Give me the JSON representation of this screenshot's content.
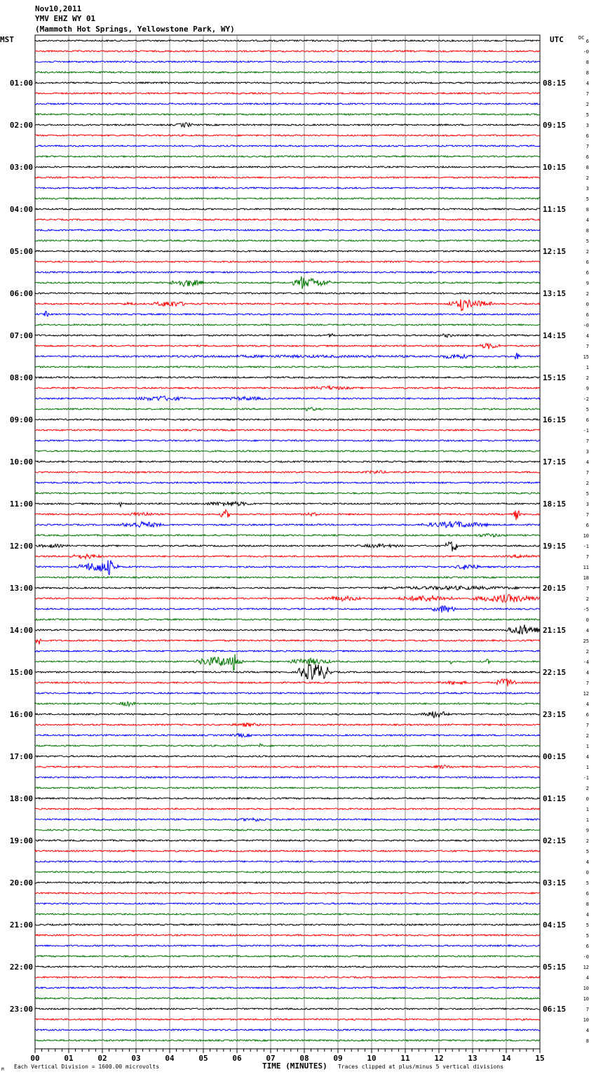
{
  "header": {
    "date": "Nov10,2011",
    "station": "YMV EHZ WY 01",
    "location": "(Mammoth Hot Springs, Yellowstone Park, WY)"
  },
  "chart_data": {
    "type": "line",
    "title": "YMV EHZ WY 01 helicorder",
    "left_axis_label": "MST",
    "right_axis_label": "UTC",
    "dc_label": "DC",
    "xlabel": "TIME (MINUTES)",
    "xlim": [
      0,
      15
    ],
    "x_ticks": [
      "00",
      "01",
      "02",
      "03",
      "04",
      "05",
      "06",
      "07",
      "08",
      "09",
      "10",
      "11",
      "12",
      "13",
      "14",
      "15"
    ],
    "mst_labels": [
      "01:00",
      "02:00",
      "03:00",
      "04:00",
      "05:00",
      "06:00",
      "07:00",
      "08:00",
      "09:00",
      "10:00",
      "11:00",
      "12:00",
      "13:00",
      "14:00",
      "15:00",
      "16:00",
      "17:00",
      "18:00",
      "19:00",
      "20:00",
      "21:00",
      "22:00",
      "23:00"
    ],
    "utc_labels": [
      "08:15",
      "09:15",
      "10:15",
      "11:15",
      "12:15",
      "13:15",
      "14:15",
      "15:15",
      "16:15",
      "17:15",
      "18:15",
      "19:15",
      "20:15",
      "21:15",
      "22:15",
      "23:15",
      "00:15",
      "01:15",
      "02:15",
      "03:15",
      "04:15",
      "05:15",
      "06:15"
    ],
    "trace_colors": [
      "#000000",
      "#ff0000",
      "#0000ff",
      "#007700"
    ],
    "dc_offsets": [
      "6",
      "-0",
      "8",
      "8",
      "4",
      "7",
      "2",
      "5",
      "3",
      "6",
      "7",
      "6",
      "8",
      "2",
      "3",
      "5",
      "8",
      "4",
      "8",
      "5",
      "2",
      "6",
      "6",
      "9",
      "2",
      "0",
      "6",
      "-0",
      "4",
      "7",
      "15",
      "1",
      "2",
      "9",
      "-2",
      "5",
      "6",
      "-1",
      "7",
      "3",
      "4",
      "7",
      "2",
      "5",
      "3",
      "7",
      "6",
      "10",
      "-1",
      "7",
      "11",
      "18",
      "7",
      "2",
      "-5",
      "0",
      "4",
      "25",
      "2",
      "-4",
      "4",
      "7",
      "12",
      "4",
      "6",
      "7",
      "2",
      "1",
      "4",
      "1",
      "-1",
      "2",
      "0",
      "1",
      "1",
      "9",
      "2",
      "5",
      "4",
      "0",
      "5",
      "6",
      "8",
      "4",
      "5",
      "5",
      "6",
      "-0",
      "12",
      "4",
      "10",
      "10",
      "7",
      "10",
      "4",
      "8"
    ],
    "events": [
      {
        "trace": 8,
        "start": 4.2,
        "end": 4.7,
        "amp": 4
      },
      {
        "trace": 23,
        "start": 4.0,
        "end": 5.0,
        "amp": 6
      },
      {
        "trace": 23,
        "start": 7.6,
        "end": 8.8,
        "amp": 7
      },
      {
        "trace": 23,
        "start": 7.85,
        "end": 8.0,
        "amp": 14
      },
      {
        "trace": 25,
        "start": 2.6,
        "end": 3.0,
        "amp": 3
      },
      {
        "trace": 25,
        "start": 3.5,
        "end": 4.5,
        "amp": 5
      },
      {
        "trace": 25,
        "start": 12.2,
        "end": 13.6,
        "amp": 6
      },
      {
        "trace": 25,
        "start": 12.6,
        "end": 12.75,
        "amp": 13
      },
      {
        "trace": 26,
        "start": 0.25,
        "end": 0.4,
        "amp": 5
      },
      {
        "trace": 28,
        "start": 8.7,
        "end": 8.9,
        "amp": 4
      },
      {
        "trace": 28,
        "start": 12.0,
        "end": 12.5,
        "amp": 3
      },
      {
        "trace": 29,
        "start": 13.2,
        "end": 13.8,
        "amp": 5
      },
      {
        "trace": 30,
        "start": 0,
        "end": 15,
        "amp": 2
      },
      {
        "trace": 30,
        "start": 12.0,
        "end": 13.0,
        "amp": 4
      },
      {
        "trace": 30,
        "start": 14.2,
        "end": 14.4,
        "amp": 6
      },
      {
        "trace": 33,
        "start": 8.0,
        "end": 9.5,
        "amp": 3
      },
      {
        "trace": 34,
        "start": 3.0,
        "end": 4.5,
        "amp": 4
      },
      {
        "trace": 34,
        "start": 5.5,
        "end": 7.0,
        "amp": 3
      },
      {
        "trace": 35,
        "start": 7.8,
        "end": 8.5,
        "amp": 3
      },
      {
        "trace": 41,
        "start": 9.8,
        "end": 10.5,
        "amp": 3
      },
      {
        "trace": 44,
        "start": 2.5,
        "end": 2.6,
        "amp": 5
      },
      {
        "trace": 44,
        "start": 5.0,
        "end": 6.5,
        "amp": 4
      },
      {
        "trace": 45,
        "start": 2.8,
        "end": 3.5,
        "amp": 4
      },
      {
        "trace": 45,
        "start": 5.5,
        "end": 5.8,
        "amp": 7
      },
      {
        "trace": 45,
        "start": 8.0,
        "end": 8.5,
        "amp": 3
      },
      {
        "trace": 45,
        "start": 14.2,
        "end": 14.4,
        "amp": 9
      },
      {
        "trace": 46,
        "start": 2.5,
        "end": 3.8,
        "amp": 5
      },
      {
        "trace": 46,
        "start": 11.5,
        "end": 13.5,
        "amp": 5
      },
      {
        "trace": 47,
        "start": 13.0,
        "end": 14.0,
        "amp": 3
      },
      {
        "trace": 48,
        "start": 0,
        "end": 1.0,
        "amp": 3
      },
      {
        "trace": 48,
        "start": 9.5,
        "end": 11.0,
        "amp": 3
      },
      {
        "trace": 48,
        "start": 12.2,
        "end": 12.6,
        "amp": 9
      },
      {
        "trace": 49,
        "start": 1.0,
        "end": 2.0,
        "amp": 4
      },
      {
        "trace": 49,
        "start": 14.0,
        "end": 15.0,
        "amp": 3
      },
      {
        "trace": 50,
        "start": 1.3,
        "end": 2.5,
        "amp": 8
      },
      {
        "trace": 50,
        "start": 2.1,
        "end": 2.3,
        "amp": 14
      },
      {
        "trace": 50,
        "start": 12.5,
        "end": 13.2,
        "amp": 5
      },
      {
        "trace": 52,
        "start": 10.0,
        "end": 15.0,
        "amp": 3
      },
      {
        "trace": 53,
        "start": 8.5,
        "end": 9.8,
        "amp": 4
      },
      {
        "trace": 53,
        "start": 10.8,
        "end": 12.5,
        "amp": 5
      },
      {
        "trace": 53,
        "start": 13.0,
        "end": 15.0,
        "amp": 6
      },
      {
        "trace": 54,
        "start": 11.8,
        "end": 12.5,
        "amp": 6
      },
      {
        "trace": 56,
        "start": 14.0,
        "end": 15.0,
        "amp": 8
      },
      {
        "trace": 57,
        "start": 0,
        "end": 0.2,
        "amp": 8
      },
      {
        "trace": 59,
        "start": 4.8,
        "end": 6.2,
        "amp": 8
      },
      {
        "trace": 59,
        "start": 5.85,
        "end": 5.95,
        "amp": 30
      },
      {
        "trace": 59,
        "start": 7.5,
        "end": 8.8,
        "amp": 5
      },
      {
        "trace": 59,
        "start": 12.3,
        "end": 12.4,
        "amp": 6
      },
      {
        "trace": 59,
        "start": 13.4,
        "end": 13.5,
        "amp": 5
      },
      {
        "trace": 60,
        "start": 7.8,
        "end": 8.8,
        "amp": 14
      },
      {
        "trace": 61,
        "start": 12.0,
        "end": 13.0,
        "amp": 3
      },
      {
        "trace": 61,
        "start": 13.7,
        "end": 14.3,
        "amp": 7
      },
      {
        "trace": 63,
        "start": 2.5,
        "end": 3.0,
        "amp": 4
      },
      {
        "trace": 64,
        "start": 11.5,
        "end": 12.3,
        "amp": 6
      },
      {
        "trace": 65,
        "start": 5.8,
        "end": 6.8,
        "amp": 3
      },
      {
        "trace": 66,
        "start": 5.8,
        "end": 6.5,
        "amp": 3
      },
      {
        "trace": 67,
        "start": 6.65,
        "end": 6.75,
        "amp": 5
      },
      {
        "trace": 69,
        "start": 11.8,
        "end": 12.5,
        "amp": 3
      },
      {
        "trace": 74,
        "start": 6.0,
        "end": 7.0,
        "amp": 3
      },
      {
        "trace": 85,
        "start": 8.3,
        "end": 8.8,
        "amp": 2
      }
    ]
  },
  "footer": {
    "corner_mark": "M",
    "scale_note": "Each Vertical Division = 1600.00 microvolts",
    "clip_note": "Traces clipped at plus/minus 5 vertical divisions"
  }
}
